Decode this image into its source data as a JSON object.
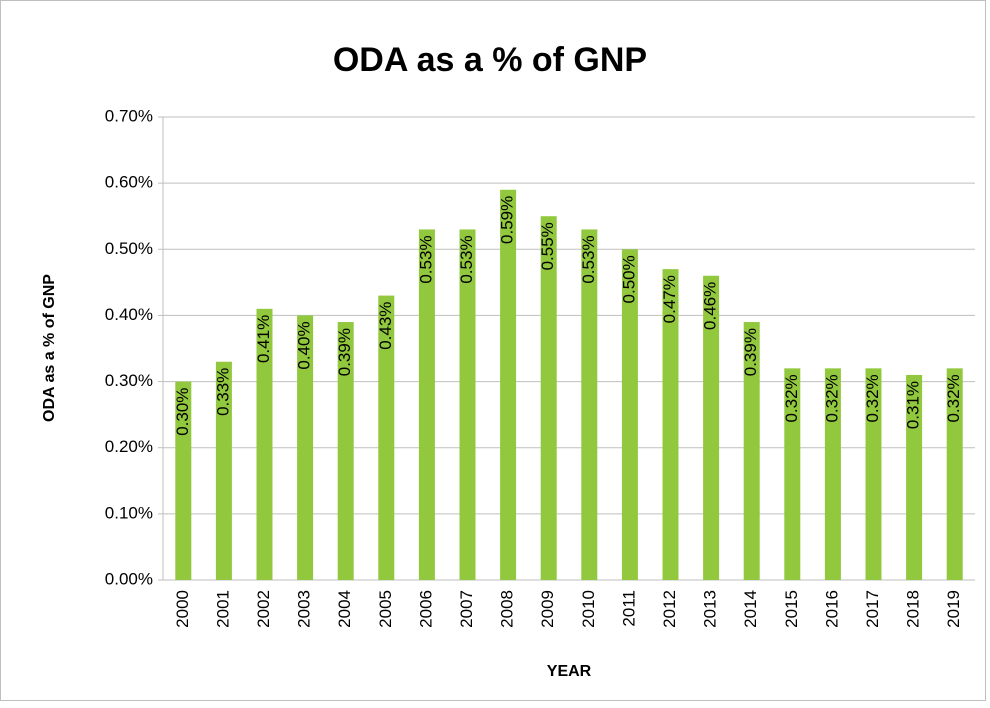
{
  "chart_data": {
    "type": "bar",
    "title": "ODA as a % of GNP",
    "x_label": "YEAR",
    "y_label": "ODA as a % of GNP",
    "categories": [
      "2000",
      "2001",
      "2002",
      "2003",
      "2004",
      "2005",
      "2006",
      "2007",
      "2008",
      "2009",
      "2010",
      "2011",
      "2012",
      "2013",
      "2014",
      "2015",
      "2016",
      "2017",
      "2018",
      "2019"
    ],
    "values": [
      0.3,
      0.33,
      0.41,
      0.4,
      0.39,
      0.43,
      0.53,
      0.53,
      0.59,
      0.55,
      0.53,
      0.5,
      0.47,
      0.46,
      0.39,
      0.32,
      0.32,
      0.32,
      0.31,
      0.32
    ],
    "value_labels": [
      "0.30%",
      "0.33%",
      "0.41%",
      "0.40%",
      "0.39%",
      "0.43%",
      "0.53%",
      "0.53%",
      "0.59%",
      "0.55%",
      "0.53%",
      "0.50%",
      "0.47%",
      "0.46%",
      "0.39%",
      "0.32%",
      "0.32%",
      "0.32%",
      "0.31%",
      "0.32%"
    ],
    "color": "#92c83e",
    "ylim": [
      0,
      0.7
    ],
    "yticks": [
      {
        "value": 0,
        "label": "0.00%"
      },
      {
        "value": 0.1,
        "label": "0.10%"
      },
      {
        "value": 0.2,
        "label": "0.20%"
      },
      {
        "value": 0.3,
        "label": "0.30%"
      },
      {
        "value": 0.4,
        "label": "0.40%"
      },
      {
        "value": 0.5,
        "label": "0.50%"
      },
      {
        "value": 0.6,
        "label": "0.60%"
      },
      {
        "value": 0.7,
        "label": "0.70%"
      }
    ],
    "grid": true
  }
}
